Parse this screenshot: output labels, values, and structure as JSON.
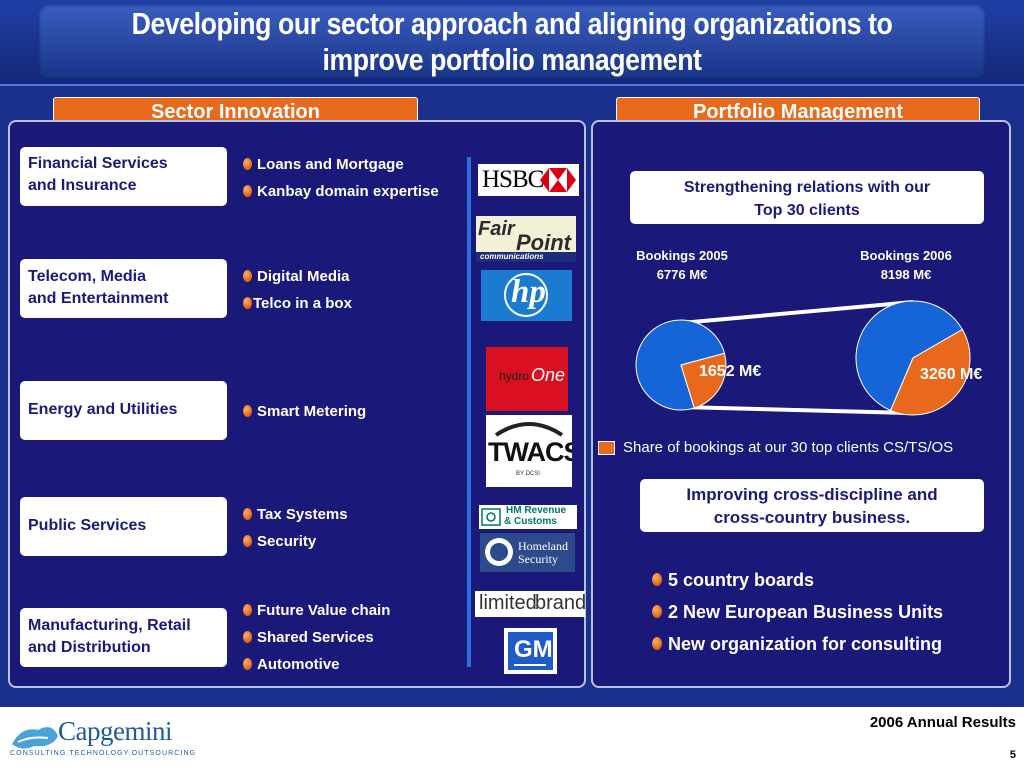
{
  "title": "Developing our sector approach and aligning organizations to improve portfolio management",
  "left_tab": "Sector Innovation",
  "right_tab": "Portfolio Management",
  "sectors": [
    {
      "name_line1": "Financial Services",
      "name_line2": "and Insurance",
      "bullets": [
        "Loans and Mortgage",
        "Kanbay domain expertise"
      ]
    },
    {
      "name_line1": "Telecom, Media",
      "name_line2": "and Entertainment",
      "bullets": [
        "Digital Media",
        "Telco in a box"
      ]
    },
    {
      "name_line1": "Energy and Utilities",
      "name_line2": "",
      "bullets": [
        "Smart Metering"
      ]
    },
    {
      "name_line1": "Public Services",
      "name_line2": "",
      "bullets": [
        "Tax Systems",
        "Security"
      ]
    },
    {
      "name_line1": "Manufacturing, Retail",
      "name_line2": "and Distribution",
      "bullets": [
        "Future Value chain",
        "Shared Services",
        "Automotive"
      ]
    }
  ],
  "logos": {
    "hsbc": "HSBC",
    "fairpoint_1": "Fair",
    "fairpoint_2": "Point",
    "fairpoint_3": "communications",
    "hp": "hp",
    "hydro_1": "hydro",
    "hydro_2": "One",
    "twacs": "TWACS",
    "twacs_sub": "BY DCSI",
    "hmrc_1": "HM Revenue",
    "hmrc_2": "& Customs",
    "dhs_1": "Homeland",
    "dhs_2": "Security",
    "limited_1": "limited",
    "limited_2": "brands",
    "gm": "GM",
    "capgemini": "Capgemini",
    "capgemini_tag": "CONSULTING.TECHNOLOGY.OUTSOURCING"
  },
  "portfolio": {
    "box1_line1": "Strengthening relations with our",
    "box1_line2": "Top 30 clients",
    "box2_line1": "Improving cross-discipline and",
    "box2_line2": "cross-country business.",
    "bullets": [
      "5 country boards",
      "2 New European Business Units",
      "New organization for consulting"
    ]
  },
  "chart_data": {
    "type": "pie",
    "pies": [
      {
        "title": "Bookings 2005",
        "total_label": "6776 M€",
        "total": 6776,
        "highlight": 1652,
        "highlight_label": "1652 M€"
      },
      {
        "title": "Bookings 2006",
        "total_label": "8198 M€",
        "total": 8198,
        "highlight": 3260,
        "highlight_label": "3260 M€"
      }
    ],
    "legend": "Share of bookings at our 30 top clients CS/TS/OS",
    "colors": {
      "rest": "#1565d8",
      "highlight": "#e8691b"
    }
  },
  "footer": {
    "report": "2006 Annual Results",
    "page": "5"
  },
  "colors": {
    "background": "#1b2f8c",
    "accent": "#e76a1d",
    "panel": "#1a1878"
  }
}
